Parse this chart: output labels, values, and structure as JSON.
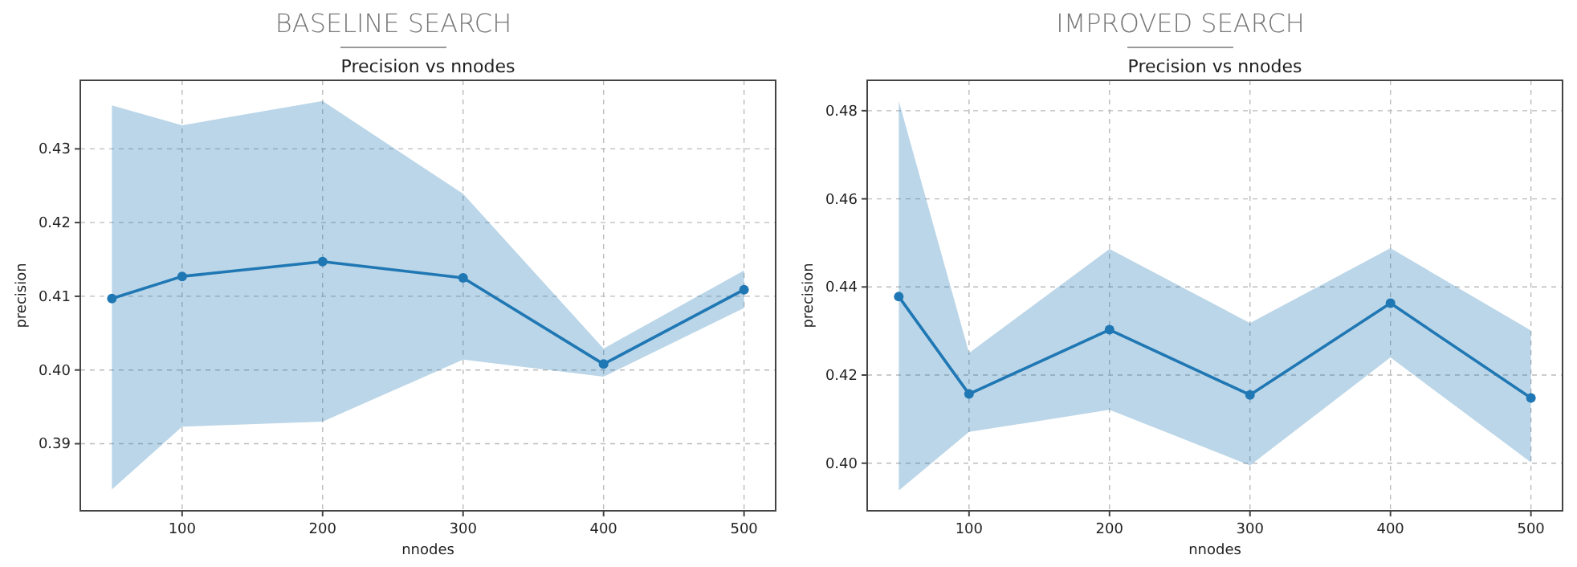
{
  "chart_data": [
    {
      "type": "line",
      "title": "BASELINE SEARCH",
      "subtitle": "Precision vs nnodes",
      "xlabel": "nnodes",
      "ylabel": "precision",
      "x": [
        50,
        100,
        200,
        300,
        400,
        500
      ],
      "series": [
        {
          "color": "#1f77b4",
          "values": [
            0.4097,
            0.4127,
            0.4147,
            0.4125,
            0.4008,
            0.4109
          ],
          "lower": [
            0.3838,
            0.3923,
            0.393,
            0.4014,
            0.3991,
            0.4084
          ],
          "upper": [
            0.4359,
            0.4332,
            0.4365,
            0.4239,
            0.4029,
            0.4135
          ]
        }
      ],
      "xlim": [
        27.5,
        522.5
      ],
      "ylim": [
        0.3809,
        0.4393
      ],
      "xticks": [
        100,
        200,
        300,
        400,
        500
      ],
      "yticks": [
        0.39,
        {
          "value": 0.4,
          "label": "0.40"
        },
        0.41,
        0.42,
        0.43
      ],
      "grid": true,
      "marker": "circle",
      "line_style": "solid"
    },
    {
      "type": "line",
      "title": "IMPROVED SEARCH",
      "subtitle": "Precision vs nnodes",
      "xlabel": "nnodes",
      "ylabel": "precision",
      "x": [
        50,
        100,
        200,
        300,
        400,
        500
      ],
      "series": [
        {
          "color": "#1f77b4",
          "values": [
            0.4378,
            0.4157,
            0.4303,
            0.4155,
            0.4363,
            0.4148
          ],
          "lower": [
            0.3938,
            0.4071,
            0.4121,
            0.3995,
            0.424,
            0.4002
          ],
          "upper": [
            0.4822,
            0.425,
            0.4486,
            0.4318,
            0.4488,
            0.4301
          ]
        }
      ],
      "xlim": [
        27.5,
        522.5
      ],
      "ylim": [
        0.3892,
        0.4869
      ],
      "xticks": [
        100,
        200,
        300,
        400,
        500
      ],
      "yticks": [
        {
          "value": 0.4,
          "label": "0.40"
        },
        0.42,
        0.44,
        0.46,
        0.48
      ],
      "grid": true,
      "marker": "circle",
      "line_style": "solid"
    }
  ]
}
